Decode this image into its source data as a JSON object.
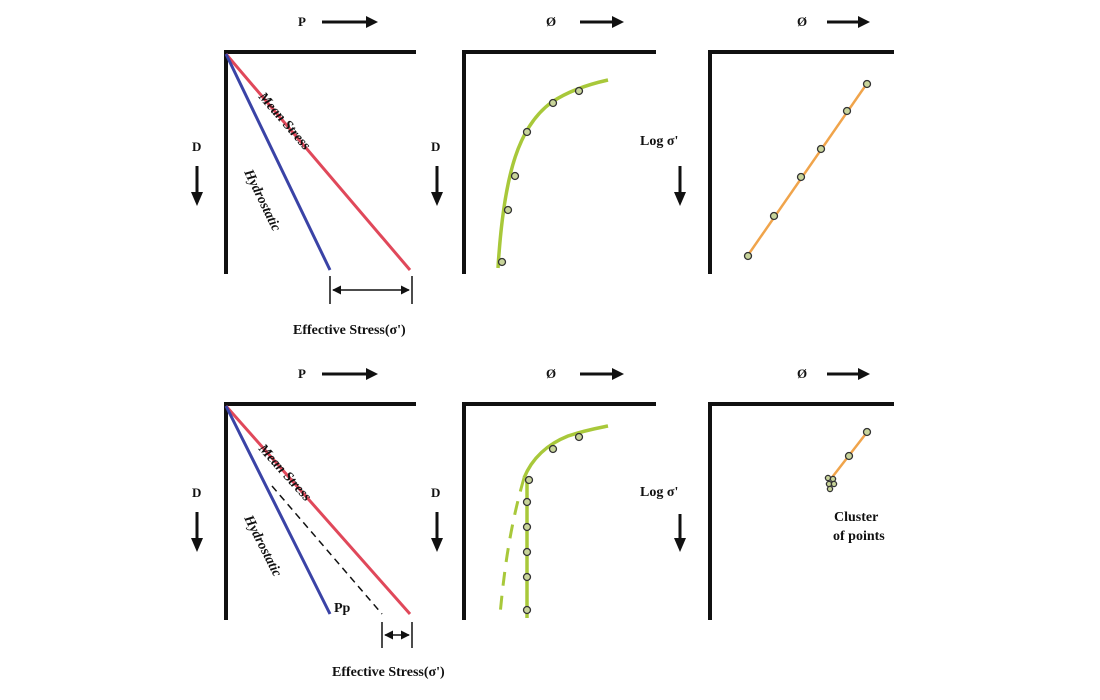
{
  "colors": {
    "mean_stress_line": "#e0485a",
    "hydrostatic_line": "#3a43a6",
    "porosity_curve": "#a8c83a",
    "log_line": "#f0a44b",
    "axis": "#111111"
  },
  "top_row": {
    "pressure_panel": {
      "x_symbol": "P",
      "y_symbol": "D",
      "mean_stress_label": "Mean Stress",
      "hydrostatic_label": "Hydrostatic",
      "effective_stress_label": "Effective Stress(σ')"
    },
    "porosity_panel": {
      "x_symbol": "Ø",
      "y_symbol": "D"
    },
    "log_panel": {
      "x_symbol": "Ø",
      "y_symbol": "Log σ'"
    }
  },
  "bottom_row": {
    "pressure_panel": {
      "x_symbol": "P",
      "y_symbol": "D",
      "mean_stress_label": "Mean Stress",
      "hydrostatic_label": "Hydrostatic",
      "pp_label": "Pp",
      "effective_stress_label": "Effective Stress(σ')"
    },
    "porosity_panel": {
      "x_symbol": "Ø",
      "y_symbol": "D"
    },
    "log_panel": {
      "x_symbol": "Ø",
      "y_symbol": "Log σ'",
      "cluster_label_line1": "Cluster",
      "cluster_label_line2": "of points"
    }
  }
}
